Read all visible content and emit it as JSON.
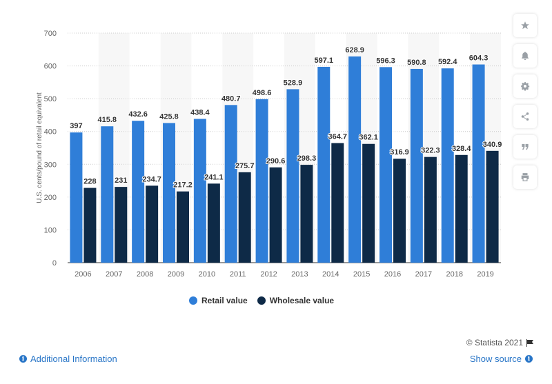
{
  "chart_data": {
    "type": "bar",
    "categories": [
      "2006",
      "2007",
      "2008",
      "2009",
      "2010",
      "2011",
      "2012",
      "2013",
      "2014",
      "2015",
      "2016",
      "2017",
      "2018",
      "2019"
    ],
    "series": [
      {
        "name": "Retail value",
        "values": [
          397,
          415.8,
          432.6,
          425.8,
          438.4,
          480.7,
          498.6,
          528.9,
          597.1,
          628.9,
          596.3,
          590.8,
          592.4,
          604.3
        ],
        "color": "#2f7ed8"
      },
      {
        "name": "Wholesale value",
        "values": [
          228,
          231,
          234.7,
          217.2,
          241.1,
          275.7,
          290.6,
          298.3,
          364.7,
          362.1,
          316.9,
          322.3,
          328.4,
          340.9
        ],
        "color": "#0e2a47"
      }
    ],
    "data_labels": [
      [
        "397",
        "415.8",
        "432.6",
        "425.8",
        "438.4",
        "480.7",
        "498.6",
        "528.9",
        "597.1",
        "628.9",
        "596.3",
        "590.8",
        "592.4",
        "604.3"
      ],
      [
        "228",
        "231",
        "234.7",
        "217.2",
        "241.1",
        "275.7",
        "290.6",
        "298.3",
        "364.7",
        "362.1",
        "316.9",
        "322.3",
        "328.4",
        "340.9"
      ]
    ],
    "ylabel": "U.S. cents/pound of retail equivalent",
    "xlabel": "",
    "ylim": [
      0,
      700
    ],
    "yticks": [
      0,
      100,
      200,
      300,
      400,
      500,
      600,
      700
    ],
    "ytick_labels": [
      "0",
      "100",
      "200",
      "300",
      "400",
      "500",
      "600",
      "700"
    ],
    "grid": true,
    "legend_position": "bottom"
  },
  "legend": {
    "items": [
      {
        "label": "Retail value",
        "color": "#2f7ed8"
      },
      {
        "label": "Wholesale value",
        "color": "#0e2a47"
      }
    ]
  },
  "toolbar": {
    "icons": [
      "star-icon",
      "bell-icon",
      "gear-icon",
      "share-icon",
      "quote-icon",
      "print-icon"
    ]
  },
  "footer": {
    "credit": "© Statista 2021",
    "additional_info": "Additional Information",
    "show_source": "Show source"
  }
}
